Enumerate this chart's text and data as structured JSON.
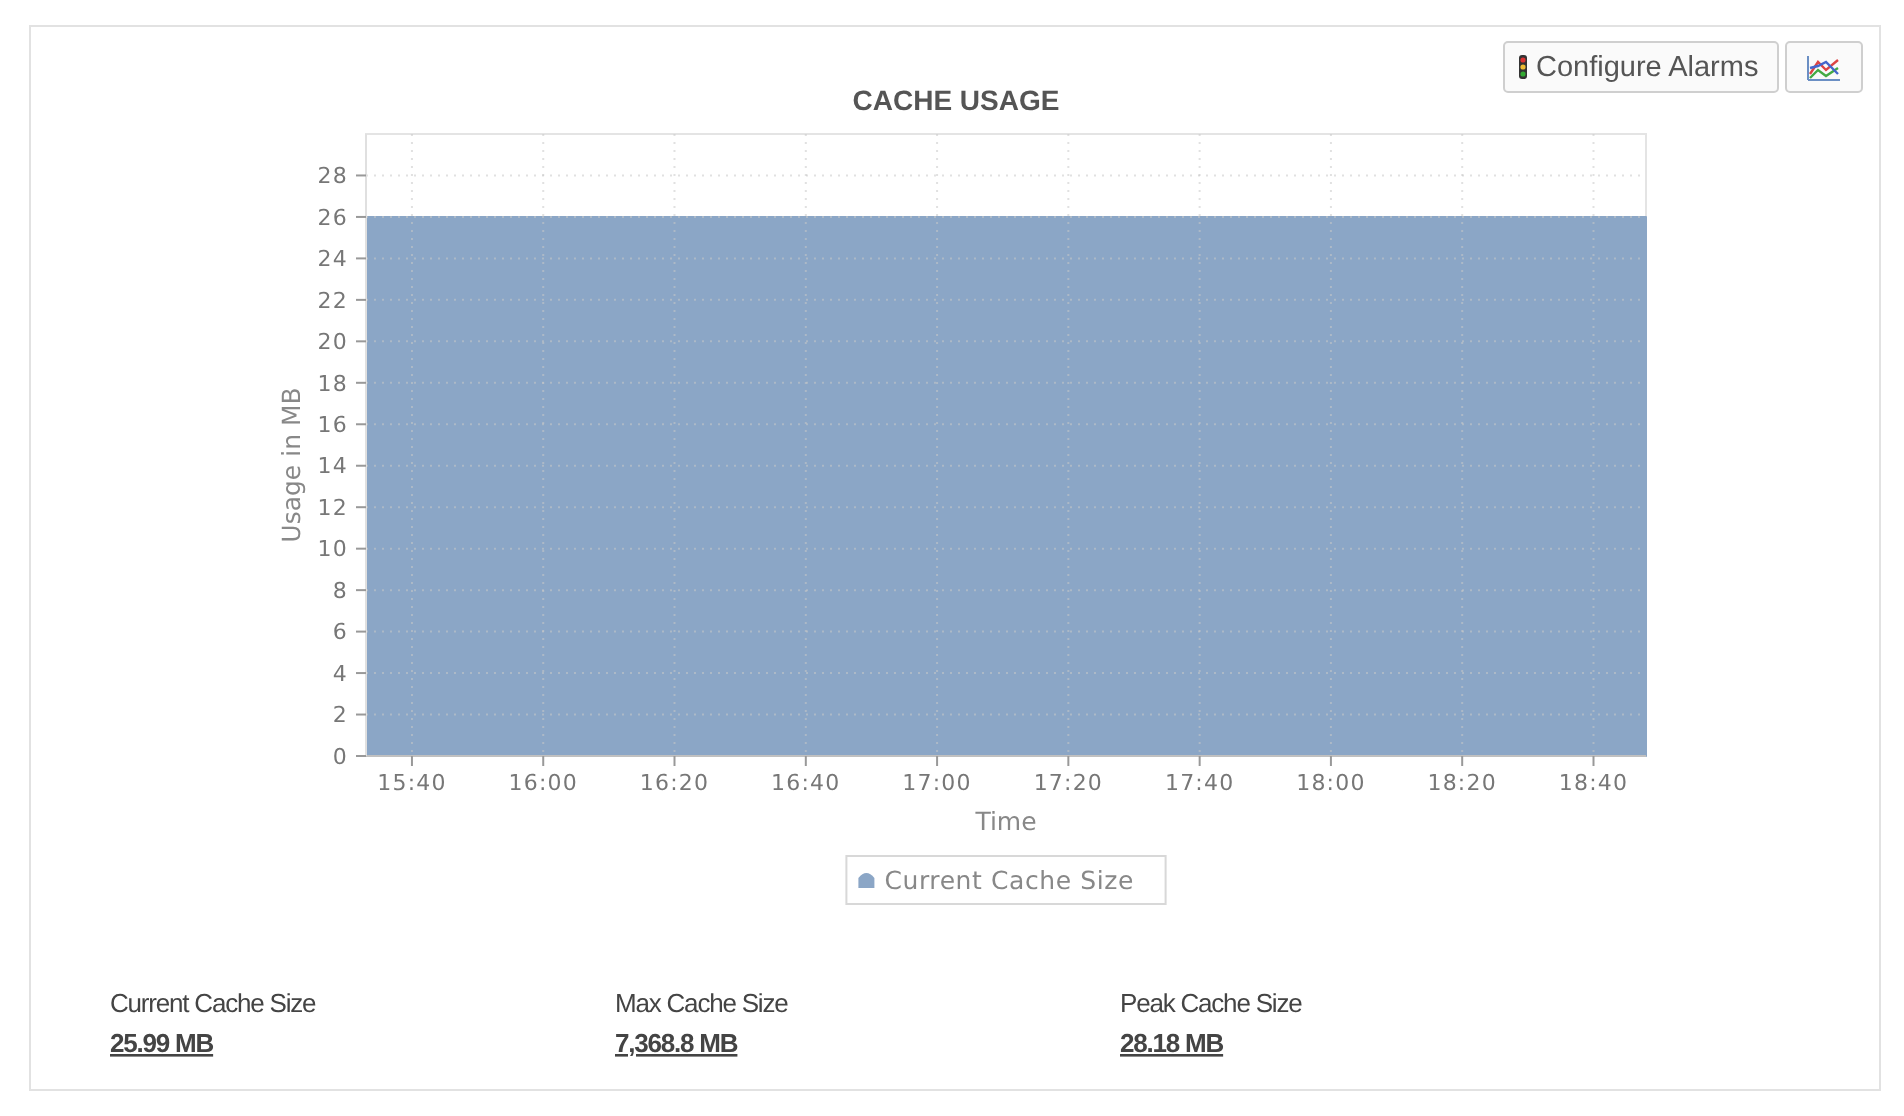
{
  "chart_data": {
    "type": "area",
    "title": "CACHE USAGE",
    "xlabel": "Time",
    "ylabel": "Usage in MB",
    "x": [
      15.55,
      18.8
    ],
    "series": [
      {
        "name": "Current Cache Size",
        "color": "#8ba6c6",
        "values": [
          26,
          26
        ]
      }
    ],
    "xlim": [
      15.55,
      18.8
    ],
    "xticks": [
      {
        "value": 15.6667,
        "label": "15:40"
      },
      {
        "value": 16,
        "label": "16:00"
      },
      {
        "value": 16.3333,
        "label": "16:20"
      },
      {
        "value": 16.6667,
        "label": "16:40"
      },
      {
        "value": 17,
        "label": "17:00"
      },
      {
        "value": 17.3333,
        "label": "17:20"
      },
      {
        "value": 17.6667,
        "label": "17:40"
      },
      {
        "value": 18,
        "label": "18:00"
      },
      {
        "value": 18.3333,
        "label": "18:20"
      },
      {
        "value": 18.6667,
        "label": "18:40"
      }
    ],
    "ylim": [
      0,
      30
    ],
    "yticks": [
      0,
      2,
      4,
      6,
      8,
      10,
      12,
      14,
      16,
      18,
      20,
      22,
      24,
      26,
      28
    ],
    "grid": true,
    "legend": "bottom",
    "annotations": [
      "Configure Alarms",
      "Current Cache Size",
      "25.99 MB",
      "Max Cache Size",
      "7,368.8 MB",
      "Peak Cache Size",
      "28.18 MB"
    ]
  }
}
